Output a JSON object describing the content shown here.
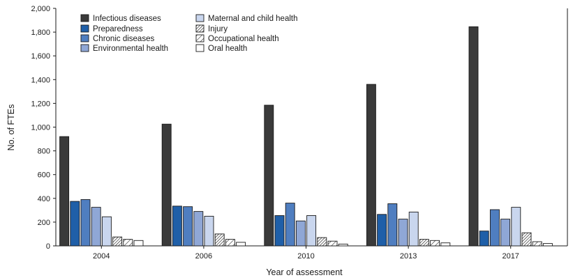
{
  "chart_data": {
    "type": "bar",
    "title": "",
    "xlabel": "Year of assessment",
    "ylabel": "No. of FTEs",
    "ylim": [
      0,
      2000
    ],
    "yticks": [
      0,
      200,
      400,
      600,
      800,
      1000,
      1200,
      1400,
      1600,
      1800,
      2000
    ],
    "ytick_labels": [
      "0",
      "200",
      "400",
      "600",
      "800",
      "1,000",
      "1,200",
      "1,400",
      "1,600",
      "1,800",
      "2,000"
    ],
    "categories": [
      "2004",
      "2006",
      "2010",
      "2013",
      "2017"
    ],
    "legend_position": "top-left",
    "series": [
      {
        "name": "Infectious diseases",
        "fill": "#3a3a3a",
        "pattern": "solid",
        "values": [
          920,
          1025,
          1185,
          1360,
          1845
        ]
      },
      {
        "name": "Preparedness",
        "fill": "#1f5fa8",
        "pattern": "solid",
        "values": [
          375,
          335,
          255,
          265,
          125
        ]
      },
      {
        "name": "Chronic diseases",
        "fill": "#4f7ec0",
        "pattern": "solid",
        "values": [
          390,
          330,
          360,
          355,
          305
        ]
      },
      {
        "name": "Environmental health",
        "fill": "#8fa7d6",
        "pattern": "solid",
        "values": [
          325,
          290,
          210,
          225,
          225
        ]
      },
      {
        "name": "Maternal and child health",
        "fill": "#c9d6ee",
        "pattern": "solid",
        "values": [
          245,
          250,
          255,
          285,
          325
        ]
      },
      {
        "name": "Injury",
        "fill": "#ffffff",
        "pattern": "hatch-dense",
        "values": [
          75,
          100,
          70,
          55,
          110
        ]
      },
      {
        "name": "Occupational health",
        "fill": "#ffffff",
        "pattern": "hatch-sparse",
        "values": [
          55,
          55,
          40,
          45,
          35
        ]
      },
      {
        "name": "Oral health",
        "fill": "#ffffff",
        "pattern": "solid",
        "values": [
          45,
          30,
          15,
          25,
          20
        ]
      }
    ]
  }
}
